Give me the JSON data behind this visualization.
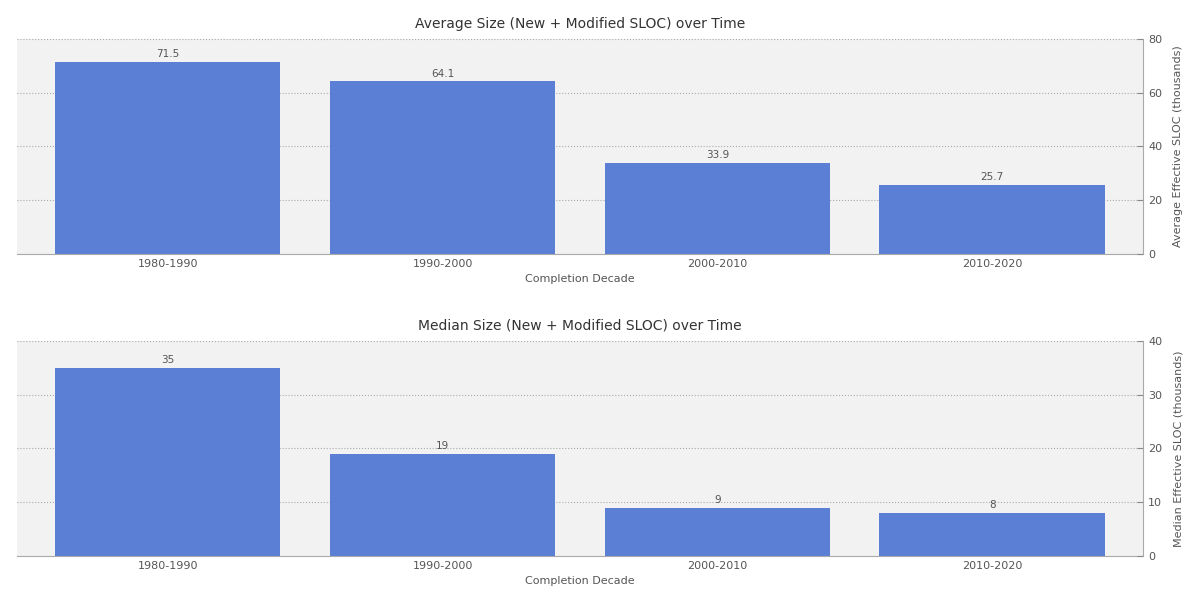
{
  "categories": [
    "1980-1990",
    "1990-2000",
    "2000-2010",
    "2010-2020"
  ],
  "avg_values": [
    71.5,
    64.1,
    33.9,
    25.7
  ],
  "med_values": [
    35,
    19,
    9,
    8
  ],
  "bar_color": "#5b7fd4",
  "avg_title": "Average Size (New + Modified SLOC) over Time",
  "med_title": "Median Size (New + Modified SLOC) over Time",
  "xlabel": "Completion Decade",
  "avg_ylabel": "Average Effective SLOC (thousands)",
  "med_ylabel": "Median Effective SLOC (thousands)",
  "avg_ylim": [
    0,
    80
  ],
  "med_ylim": [
    0,
    40
  ],
  "avg_yticks": [
    0,
    20,
    40,
    60,
    80
  ],
  "med_yticks": [
    0,
    10,
    20,
    30,
    40
  ],
  "bg_color": "#f2f2f2",
  "grid_color": "#aaaaaa",
  "title_fontsize": 10,
  "label_fontsize": 8,
  "tick_fontsize": 8,
  "bar_label_fontsize": 7.5,
  "bar_width": 0.82
}
